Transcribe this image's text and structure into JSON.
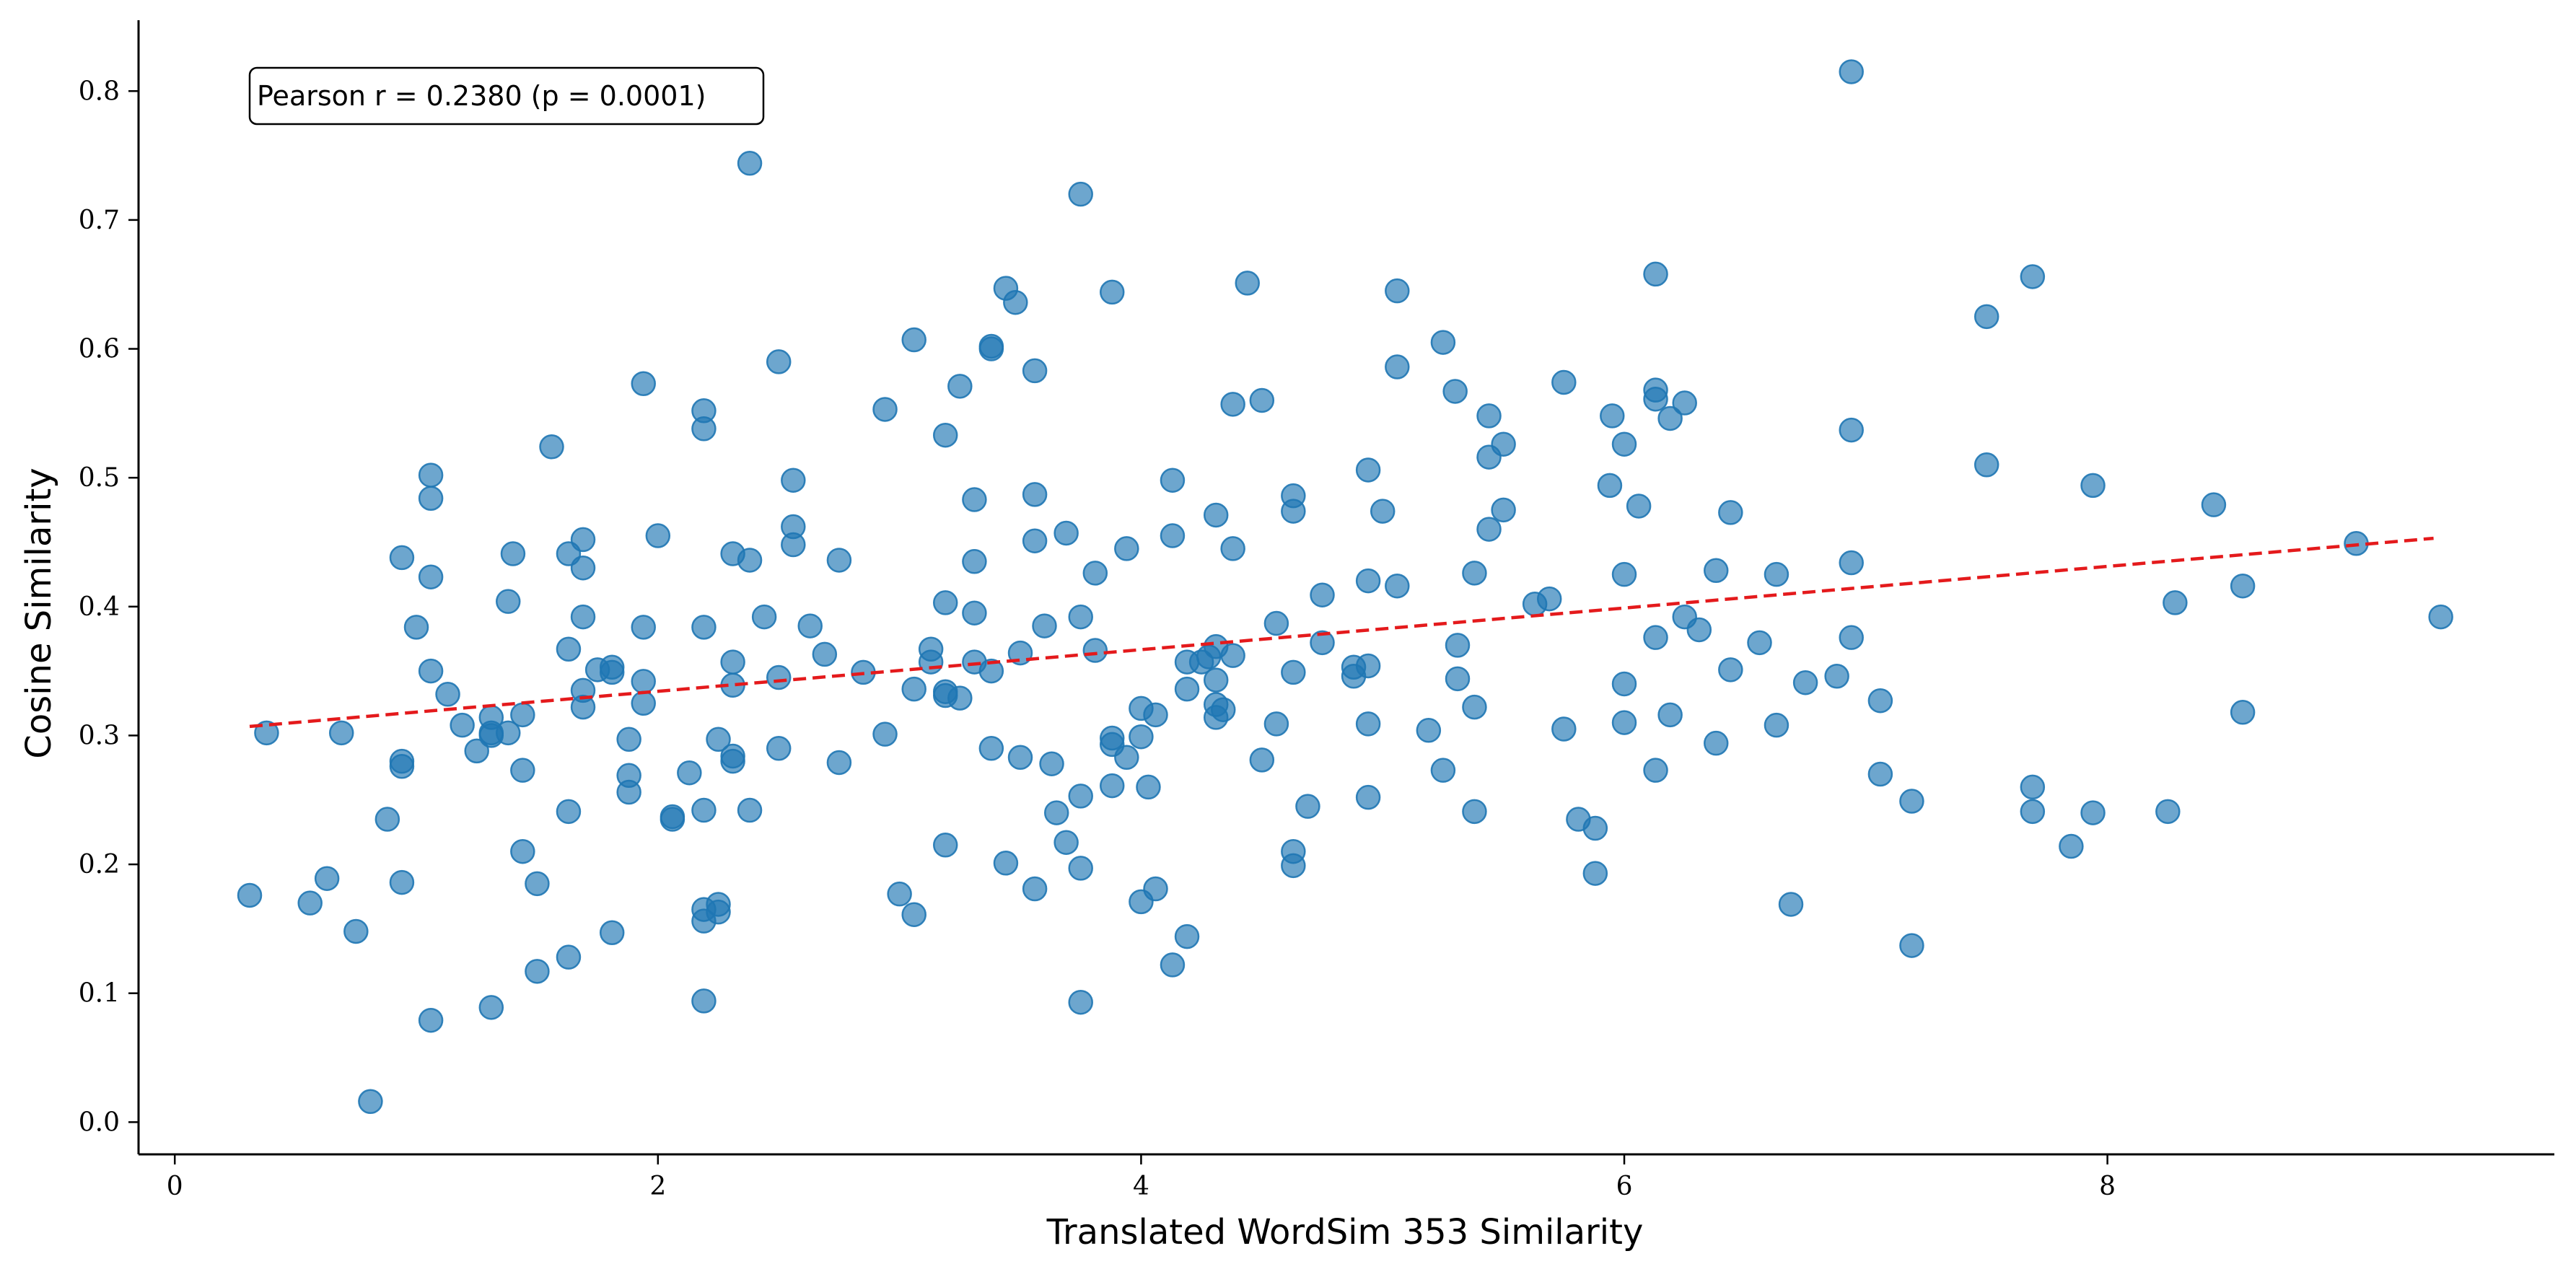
{
  "chart_data": {
    "type": "scatter",
    "xlabel": "Translated WordSim 353 Similarity",
    "ylabel": "Cosine Similarity",
    "xlim": [
      -0.15,
      9.85
    ],
    "ylim": [
      -0.025,
      0.855
    ],
    "xticks": [
      0,
      2,
      4,
      6,
      8
    ],
    "yticks": [
      0.0,
      0.1,
      0.2,
      0.3,
      0.4,
      0.5,
      0.6,
      0.7,
      0.8
    ],
    "xtick_labels": [
      "0",
      "2",
      "4",
      "6",
      "8"
    ],
    "ytick_labels": [
      "0.0",
      "0.1",
      "0.2",
      "0.3",
      "0.4",
      "0.5",
      "0.6",
      "0.7",
      "0.8"
    ],
    "annotation": "Pearson r = 0.2380 (p = 0.0001)",
    "grid": false,
    "colors": {
      "points": "#1f77b4",
      "trend": "#e41a1c"
    },
    "trend_line": {
      "x": [
        0.31,
        9.35
      ],
      "y": [
        0.307,
        0.453
      ]
    },
    "points": [
      [
        0.31,
        0.176
      ],
      [
        0.38,
        0.302
      ],
      [
        0.56,
        0.17
      ],
      [
        0.63,
        0.189
      ],
      [
        0.69,
        0.302
      ],
      [
        0.75,
        0.148
      ],
      [
        0.81,
        0.016
      ],
      [
        0.88,
        0.235
      ],
      [
        0.94,
        0.438
      ],
      [
        0.94,
        0.28
      ],
      [
        0.94,
        0.276
      ],
      [
        0.94,
        0.186
      ],
      [
        1.0,
        0.384
      ],
      [
        1.06,
        0.502
      ],
      [
        1.06,
        0.484
      ],
      [
        1.06,
        0.423
      ],
      [
        1.06,
        0.35
      ],
      [
        1.06,
        0.079
      ],
      [
        1.13,
        0.332
      ],
      [
        1.19,
        0.308
      ],
      [
        1.25,
        0.288
      ],
      [
        1.31,
        0.314
      ],
      [
        1.31,
        0.302
      ],
      [
        1.31,
        0.3
      ],
      [
        1.31,
        0.089
      ],
      [
        1.38,
        0.302
      ],
      [
        1.38,
        0.404
      ],
      [
        1.4,
        0.441
      ],
      [
        1.44,
        0.316
      ],
      [
        1.44,
        0.273
      ],
      [
        1.44,
        0.21
      ],
      [
        1.5,
        0.185
      ],
      [
        1.5,
        0.117
      ],
      [
        1.56,
        0.524
      ],
      [
        1.63,
        0.441
      ],
      [
        1.63,
        0.367
      ],
      [
        1.63,
        0.241
      ],
      [
        1.63,
        0.128
      ],
      [
        1.69,
        0.452
      ],
      [
        1.69,
        0.43
      ],
      [
        1.69,
        0.392
      ],
      [
        1.69,
        0.335
      ],
      [
        1.69,
        0.322
      ],
      [
        1.75,
        0.351
      ],
      [
        1.81,
        0.353
      ],
      [
        1.81,
        0.349
      ],
      [
        1.81,
        0.147
      ],
      [
        1.88,
        0.297
      ],
      [
        1.88,
        0.269
      ],
      [
        1.88,
        0.256
      ],
      [
        1.94,
        0.573
      ],
      [
        1.94,
        0.384
      ],
      [
        1.94,
        0.342
      ],
      [
        1.94,
        0.325
      ],
      [
        2.0,
        0.455
      ],
      [
        2.06,
        0.237
      ],
      [
        2.06,
        0.235
      ],
      [
        2.13,
        0.271
      ],
      [
        2.19,
        0.552
      ],
      [
        2.19,
        0.538
      ],
      [
        2.19,
        0.384
      ],
      [
        2.19,
        0.242
      ],
      [
        2.19,
        0.165
      ],
      [
        2.19,
        0.156
      ],
      [
        2.19,
        0.094
      ],
      [
        2.25,
        0.297
      ],
      [
        2.25,
        0.169
      ],
      [
        2.25,
        0.163
      ],
      [
        2.31,
        0.441
      ],
      [
        2.31,
        0.357
      ],
      [
        2.31,
        0.339
      ],
      [
        2.31,
        0.284
      ],
      [
        2.31,
        0.28
      ],
      [
        2.38,
        0.744
      ],
      [
        2.38,
        0.436
      ],
      [
        2.38,
        0.242
      ],
      [
        2.44,
        0.392
      ],
      [
        2.5,
        0.59
      ],
      [
        2.5,
        0.345
      ],
      [
        2.5,
        0.29
      ],
      [
        2.56,
        0.498
      ],
      [
        2.56,
        0.462
      ],
      [
        2.56,
        0.448
      ],
      [
        2.63,
        0.385
      ],
      [
        2.69,
        0.363
      ],
      [
        2.75,
        0.436
      ],
      [
        2.75,
        0.279
      ],
      [
        2.85,
        0.349
      ],
      [
        2.94,
        0.553
      ],
      [
        2.94,
        0.301
      ],
      [
        3.0,
        0.177
      ],
      [
        3.06,
        0.607
      ],
      [
        3.06,
        0.336
      ],
      [
        3.06,
        0.161
      ],
      [
        3.13,
        0.367
      ],
      [
        3.13,
        0.357
      ],
      [
        3.19,
        0.533
      ],
      [
        3.19,
        0.403
      ],
      [
        3.19,
        0.334
      ],
      [
        3.19,
        0.331
      ],
      [
        3.19,
        0.215
      ],
      [
        3.25,
        0.571
      ],
      [
        3.25,
        0.329
      ],
      [
        3.31,
        0.483
      ],
      [
        3.31,
        0.435
      ],
      [
        3.31,
        0.395
      ],
      [
        3.31,
        0.357
      ],
      [
        3.38,
        0.602
      ],
      [
        3.38,
        0.6
      ],
      [
        3.38,
        0.35
      ],
      [
        3.38,
        0.29
      ],
      [
        3.44,
        0.647
      ],
      [
        3.44,
        0.201
      ],
      [
        3.48,
        0.636
      ],
      [
        3.5,
        0.364
      ],
      [
        3.5,
        0.283
      ],
      [
        3.56,
        0.583
      ],
      [
        3.56,
        0.487
      ],
      [
        3.56,
        0.451
      ],
      [
        3.56,
        0.181
      ],
      [
        3.6,
        0.385
      ],
      [
        3.63,
        0.278
      ],
      [
        3.65,
        0.24
      ],
      [
        3.69,
        0.457
      ],
      [
        3.69,
        0.217
      ],
      [
        3.75,
        0.72
      ],
      [
        3.75,
        0.392
      ],
      [
        3.75,
        0.253
      ],
      [
        3.75,
        0.197
      ],
      [
        3.75,
        0.093
      ],
      [
        3.81,
        0.426
      ],
      [
        3.81,
        0.366
      ],
      [
        3.88,
        0.644
      ],
      [
        3.88,
        0.298
      ],
      [
        3.88,
        0.293
      ],
      [
        3.88,
        0.261
      ],
      [
        3.94,
        0.445
      ],
      [
        3.94,
        0.283
      ],
      [
        4.0,
        0.321
      ],
      [
        4.0,
        0.299
      ],
      [
        4.0,
        0.171
      ],
      [
        4.03,
        0.26
      ],
      [
        4.06,
        0.316
      ],
      [
        4.06,
        0.181
      ],
      [
        4.13,
        0.498
      ],
      [
        4.13,
        0.455
      ],
      [
        4.13,
        0.122
      ],
      [
        4.19,
        0.357
      ],
      [
        4.19,
        0.336
      ],
      [
        4.19,
        0.144
      ],
      [
        4.25,
        0.357
      ],
      [
        4.28,
        0.361
      ],
      [
        4.31,
        0.471
      ],
      [
        4.31,
        0.369
      ],
      [
        4.31,
        0.343
      ],
      [
        4.31,
        0.324
      ],
      [
        4.31,
        0.314
      ],
      [
        4.34,
        0.32
      ],
      [
        4.38,
        0.557
      ],
      [
        4.38,
        0.445
      ],
      [
        4.38,
        0.362
      ],
      [
        4.44,
        0.651
      ],
      [
        4.5,
        0.56
      ],
      [
        4.5,
        0.281
      ],
      [
        4.56,
        0.387
      ],
      [
        4.56,
        0.309
      ],
      [
        4.63,
        0.486
      ],
      [
        4.63,
        0.474
      ],
      [
        4.63,
        0.349
      ],
      [
        4.63,
        0.21
      ],
      [
        4.63,
        0.199
      ],
      [
        4.69,
        0.245
      ],
      [
        4.75,
        0.409
      ],
      [
        4.75,
        0.372
      ],
      [
        4.88,
        0.353
      ],
      [
        4.88,
        0.346
      ],
      [
        4.94,
        0.506
      ],
      [
        4.94,
        0.42
      ],
      [
        4.94,
        0.354
      ],
      [
        4.94,
        0.309
      ],
      [
        4.94,
        0.252
      ],
      [
        5.0,
        0.474
      ],
      [
        5.06,
        0.645
      ],
      [
        5.06,
        0.586
      ],
      [
        5.06,
        0.416
      ],
      [
        5.19,
        0.304
      ],
      [
        5.25,
        0.605
      ],
      [
        5.25,
        0.273
      ],
      [
        5.3,
        0.567
      ],
      [
        5.31,
        0.37
      ],
      [
        5.31,
        0.344
      ],
      [
        5.38,
        0.426
      ],
      [
        5.38,
        0.322
      ],
      [
        5.38,
        0.241
      ],
      [
        5.44,
        0.548
      ],
      [
        5.44,
        0.516
      ],
      [
        5.44,
        0.46
      ],
      [
        5.5,
        0.526
      ],
      [
        5.5,
        0.475
      ],
      [
        5.63,
        0.402
      ],
      [
        5.69,
        0.406
      ],
      [
        5.75,
        0.574
      ],
      [
        5.75,
        0.305
      ],
      [
        5.81,
        0.235
      ],
      [
        5.88,
        0.228
      ],
      [
        5.88,
        0.193
      ],
      [
        5.94,
        0.494
      ],
      [
        5.95,
        0.548
      ],
      [
        6.0,
        0.526
      ],
      [
        6.0,
        0.425
      ],
      [
        6.0,
        0.34
      ],
      [
        6.0,
        0.31
      ],
      [
        6.06,
        0.478
      ],
      [
        6.13,
        0.658
      ],
      [
        6.13,
        0.568
      ],
      [
        6.13,
        0.561
      ],
      [
        6.13,
        0.376
      ],
      [
        6.13,
        0.273
      ],
      [
        6.19,
        0.546
      ],
      [
        6.19,
        0.316
      ],
      [
        6.25,
        0.558
      ],
      [
        6.25,
        0.392
      ],
      [
        6.31,
        0.382
      ],
      [
        6.38,
        0.428
      ],
      [
        6.38,
        0.294
      ],
      [
        6.44,
        0.473
      ],
      [
        6.44,
        0.351
      ],
      [
        6.56,
        0.372
      ],
      [
        6.63,
        0.425
      ],
      [
        6.63,
        0.308
      ],
      [
        6.69,
        0.169
      ],
      [
        6.75,
        0.341
      ],
      [
        6.88,
        0.346
      ],
      [
        6.94,
        0.815
      ],
      [
        6.94,
        0.537
      ],
      [
        6.94,
        0.434
      ],
      [
        6.94,
        0.376
      ],
      [
        7.06,
        0.327
      ],
      [
        7.06,
        0.27
      ],
      [
        7.19,
        0.249
      ],
      [
        7.19,
        0.137
      ],
      [
        7.5,
        0.625
      ],
      [
        7.5,
        0.51
      ],
      [
        7.69,
        0.656
      ],
      [
        7.69,
        0.26
      ],
      [
        7.69,
        0.241
      ],
      [
        7.85,
        0.214
      ],
      [
        7.94,
        0.494
      ],
      [
        7.94,
        0.24
      ],
      [
        8.25,
        0.241
      ],
      [
        8.28,
        0.403
      ],
      [
        8.44,
        0.479
      ],
      [
        8.56,
        0.416
      ],
      [
        8.56,
        0.318
      ],
      [
        9.03,
        0.449
      ],
      [
        9.38,
        0.392
      ]
    ]
  }
}
